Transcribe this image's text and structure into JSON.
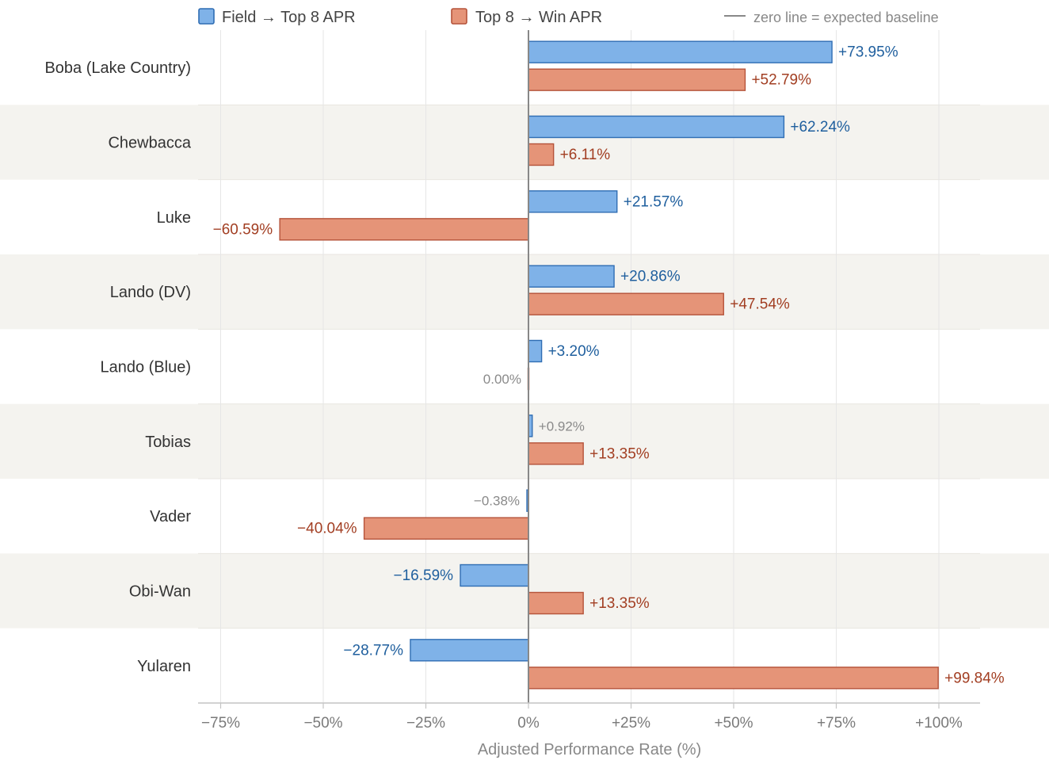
{
  "chart_data": {
    "type": "bar",
    "orientation": "horizontal",
    "xlabel": "Adjusted Performance Rate (%)",
    "xlim": [
      -80,
      110
    ],
    "x_ticks": [
      -75,
      -50,
      -25,
      0,
      25,
      50,
      75,
      100
    ],
    "x_tick_labels": [
      "−75%",
      "−50%",
      "−25%",
      "0%",
      "+25%",
      "+50%",
      "+75%",
      "+100%"
    ],
    "categories": [
      "Boba (Lake Country)",
      "Chewbacca",
      "Luke",
      "Lando (DV)",
      "Lando (Blue)",
      "Tobias",
      "Vader",
      "Obi-Wan",
      "Yularen"
    ],
    "series": [
      {
        "name": "Field → Top 8 APR",
        "color": "#7fb2e8",
        "stroke": "#2f6db3",
        "label_color": "#1f5f9e",
        "values": [
          73.95,
          62.24,
          21.57,
          20.86,
          3.2,
          0.92,
          -0.38,
          -16.59,
          -28.77
        ],
        "labels": [
          "+73.95%",
          "+62.24%",
          "+21.57%",
          "+20.86%",
          "+3.20%",
          "+0.92%",
          "−0.38%",
          "−16.59%",
          "−28.77%"
        ]
      },
      {
        "name": "Top 8 → Win APR",
        "color": "#e59478",
        "stroke": "#b5533a",
        "label_color": "#a23e22",
        "values": [
          52.79,
          6.11,
          -60.59,
          47.54,
          0.0,
          13.35,
          -40.04,
          13.35,
          99.84
        ],
        "labels": [
          "+52.79%",
          "+6.11%",
          "−60.59%",
          "+47.54%",
          "0.00%",
          "+13.35%",
          "−40.04%",
          "+13.35%",
          "+99.84%"
        ]
      }
    ],
    "legend": {
      "position": "top",
      "baseline_note": "zero line = expected baseline"
    },
    "colors": {
      "band": "#f4f3ef",
      "grid": "#e6e6e6",
      "zero_line": "#888888",
      "axis": "#c4c4c4",
      "tick_text": "#7a7a7a",
      "category_text": "#333333",
      "muted_label": "#8a8a8a"
    },
    "grid": true
  }
}
